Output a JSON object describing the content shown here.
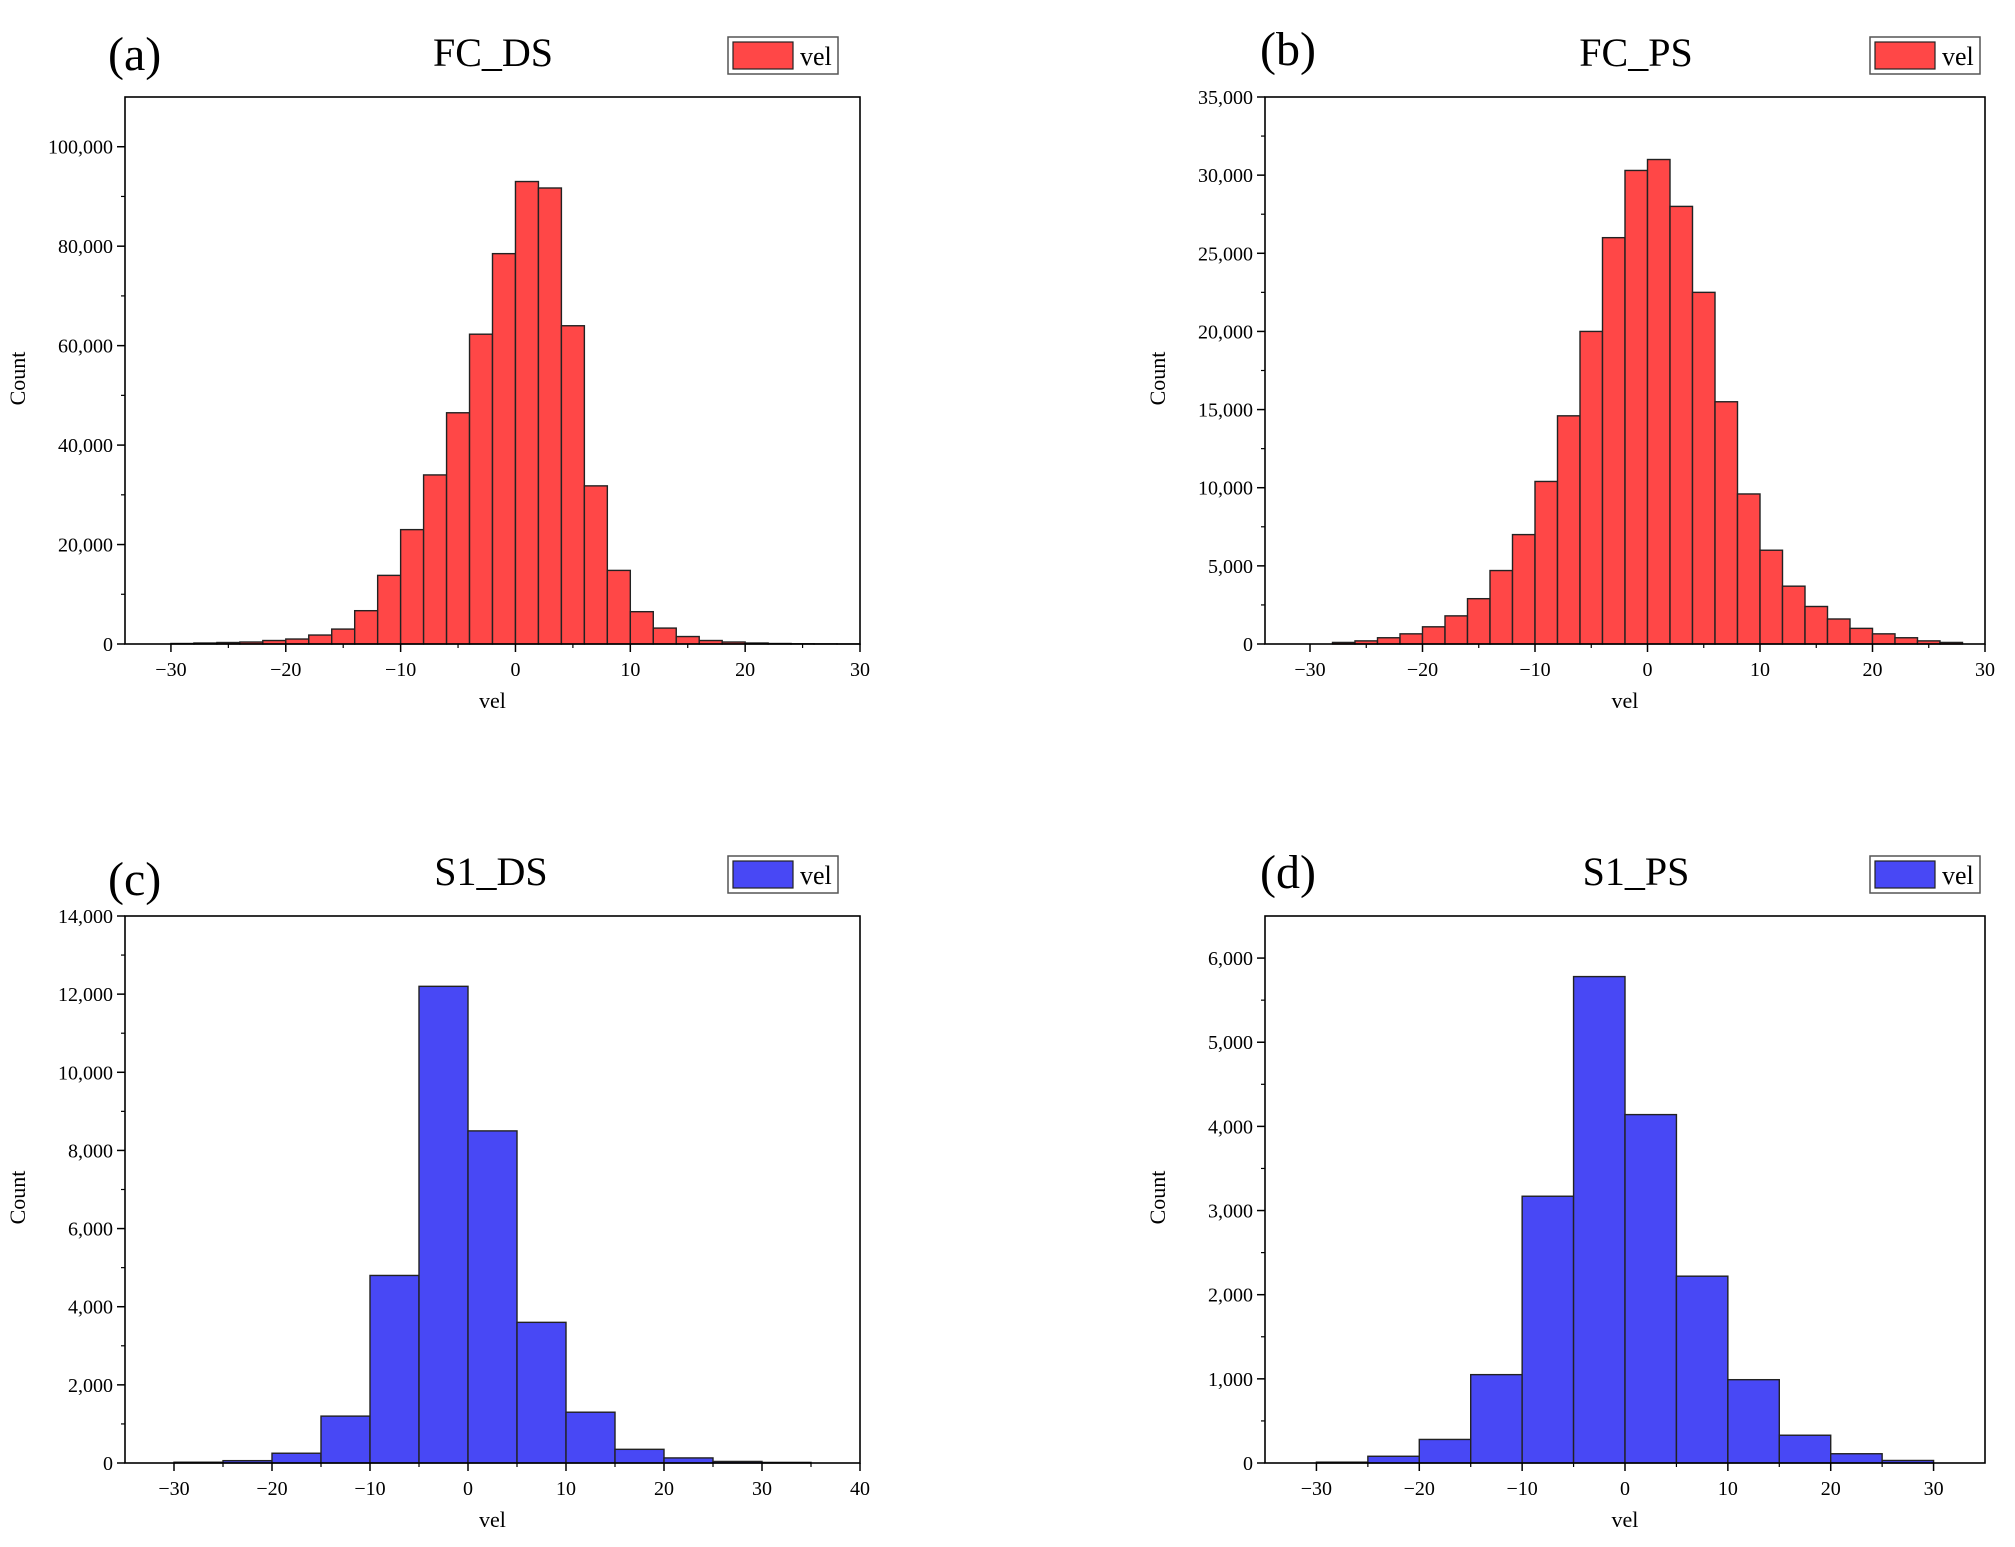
{
  "colors": {
    "red": "#ff4747",
    "blue": "#4848f5",
    "edge": "#222222"
  },
  "chart_data": [
    {
      "type": "bar",
      "panel_letter": "(a)",
      "title": "FC_DS",
      "xlabel": "vel",
      "ylabel": "Count",
      "legend": "vel",
      "color": "red",
      "xlim": [
        -34,
        30
      ],
      "ylim": [
        0,
        110000
      ],
      "xticks": [
        -30,
        -20,
        -10,
        0,
        10,
        20,
        30
      ],
      "xtick_labels": [
        "−30",
        "−20",
        "−10",
        "0",
        "10",
        "20",
        "30"
      ],
      "yticks": [
        0,
        20000,
        40000,
        60000,
        80000,
        100000
      ],
      "ytick_labels": [
        "0",
        "20,000",
        "40,000",
        "60,000",
        "80,000",
        "100,000"
      ],
      "bin_edges": [
        -30,
        -28,
        -26,
        -24,
        -22,
        -20,
        -18,
        -16,
        -14,
        -12,
        -10,
        -8,
        -6,
        -4,
        -2,
        0,
        2,
        4,
        6,
        8,
        10,
        12,
        14,
        16,
        18,
        20,
        22,
        24,
        26,
        28,
        30
      ],
      "values": [
        100,
        200,
        300,
        400,
        700,
        1000,
        1800,
        3000,
        6700,
        13800,
        23000,
        34000,
        46500,
        62300,
        78500,
        93000,
        91700,
        64000,
        31800,
        14800,
        6500,
        3200,
        1500,
        700,
        400,
        200,
        100,
        50,
        30,
        10
      ]
    },
    {
      "type": "bar",
      "panel_letter": "(b)",
      "title": "FC_PS",
      "xlabel": "vel",
      "ylabel": "Count",
      "legend": "vel",
      "color": "red",
      "xlim": [
        -34,
        30
      ],
      "ylim": [
        0,
        35000
      ],
      "xticks": [
        -30,
        -20,
        -10,
        0,
        10,
        20,
        30
      ],
      "xtick_labels": [
        "−30",
        "−20",
        "−10",
        "0",
        "10",
        "20",
        "30"
      ],
      "yticks": [
        0,
        5000,
        10000,
        15000,
        20000,
        25000,
        30000,
        35000
      ],
      "ytick_labels": [
        "0",
        "5,000",
        "10,000",
        "15,000",
        "20,000",
        "25,000",
        "30,000",
        "35,000"
      ],
      "bin_edges": [
        -28,
        -26,
        -24,
        -22,
        -20,
        -18,
        -16,
        -14,
        -12,
        -10,
        -8,
        -6,
        -4,
        -2,
        0,
        2,
        4,
        6,
        8,
        10,
        12,
        14,
        16,
        18,
        20,
        22,
        24,
        26,
        28
      ],
      "values": [
        100,
        200,
        400,
        650,
        1100,
        1800,
        2900,
        4700,
        7000,
        10400,
        14600,
        20000,
        26000,
        30300,
        31000,
        28000,
        22500,
        15500,
        9600,
        6000,
        3700,
        2400,
        1600,
        1000,
        650,
        400,
        200,
        100
      ]
    },
    {
      "type": "bar",
      "panel_letter": "(c)",
      "title": "S1_DS",
      "xlabel": "vel",
      "ylabel": "Count",
      "legend": "vel",
      "color": "blue",
      "xlim": [
        -35,
        40
      ],
      "ylim": [
        0,
        14000
      ],
      "xticks": [
        -30,
        -20,
        -10,
        0,
        10,
        20,
        30,
        40
      ],
      "xtick_labels": [
        "−30",
        "−20",
        "−10",
        "0",
        "10",
        "20",
        "30",
        "40"
      ],
      "yticks": [
        0,
        2000,
        4000,
        6000,
        8000,
        10000,
        12000,
        14000
      ],
      "ytick_labels": [
        "0",
        "2,000",
        "4,000",
        "6,000",
        "8,000",
        "10,000",
        "12,000",
        "14,000"
      ],
      "bin_edges": [
        -30,
        -25,
        -20,
        -15,
        -10,
        -5,
        0,
        5,
        10,
        15,
        20,
        25,
        30,
        35
      ],
      "values": [
        20,
        60,
        250,
        1200,
        4800,
        12200,
        8500,
        3600,
        1300,
        350,
        130,
        40,
        15
      ]
    },
    {
      "type": "bar",
      "panel_letter": "(d)",
      "title": "S1_PS",
      "xlabel": "vel",
      "ylabel": "Count",
      "legend": "vel",
      "color": "blue",
      "xlim": [
        -35,
        35
      ],
      "ylim": [
        0,
        6500
      ],
      "xticks": [
        -30,
        -20,
        -10,
        0,
        10,
        20,
        30
      ],
      "xtick_labels": [
        "−30",
        "−20",
        "−10",
        "0",
        "10",
        "20",
        "30"
      ],
      "yticks": [
        0,
        1000,
        2000,
        3000,
        4000,
        5000,
        6000
      ],
      "ytick_labels": [
        "0",
        "1,000",
        "2,000",
        "3,000",
        "4,000",
        "5,000",
        "6,000"
      ],
      "bin_edges": [
        -30,
        -25,
        -20,
        -15,
        -10,
        -5,
        0,
        5,
        10,
        15,
        20,
        25,
        30
      ],
      "values": [
        10,
        80,
        280,
        1050,
        3170,
        5780,
        4140,
        2220,
        990,
        330,
        110,
        30
      ]
    }
  ]
}
